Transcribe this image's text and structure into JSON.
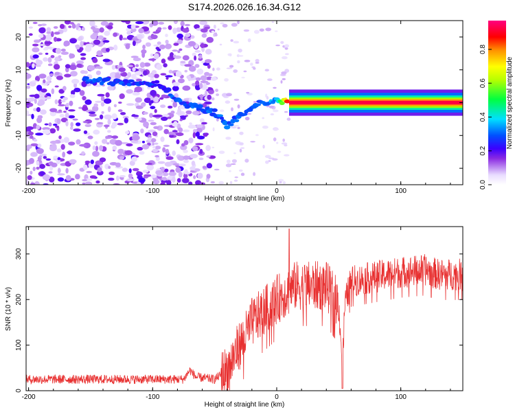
{
  "title": "S174.2026.026.16.34.G12",
  "chart_data": [
    {
      "type": "heatmap",
      "xlabel": "Height of straight line (km)",
      "ylabel": "Frequency (Hz)",
      "xlim": [
        -202,
        150
      ],
      "ylim": [
        -25,
        25
      ],
      "xticks": [
        -200,
        -100,
        0,
        100
      ],
      "yticks": [
        -20,
        -10,
        0,
        10,
        20
      ],
      "description_points": [
        {
          "x": -155,
          "y": 7,
          "amp": 0.25
        },
        {
          "x": -150,
          "y": 6.5,
          "amp": 0.3
        },
        {
          "x": -95,
          "y": 6,
          "amp": 0.25
        },
        {
          "x": -78,
          "y": 0,
          "amp": 0.3
        },
        {
          "x": -50,
          "y": -3,
          "amp": 0.3
        },
        {
          "x": -40,
          "y": -7,
          "amp": 0.3
        },
        {
          "x": -20,
          "y": -1,
          "amp": 0.3
        },
        {
          "x": 0,
          "y": 1,
          "amp": 0.35
        },
        {
          "x": 10,
          "y": 0,
          "amp": 0.95
        },
        {
          "x": 150,
          "y": 0,
          "amp": 0.95
        }
      ],
      "colorbar": {
        "label": "Normalized spectral amplitude",
        "ticks": [
          "0.0",
          "0.2",
          "0.4",
          "0.6",
          "0.8"
        ],
        "tick_values": [
          0,
          0.2,
          0.4,
          0.6,
          0.8
        ],
        "range": [
          0,
          0.97
        ]
      }
    },
    {
      "type": "line",
      "xlabel": "Height of straight line (km)",
      "ylabel": "SNR (10 * v/v)",
      "xlim": [
        -202,
        150
      ],
      "ylim": [
        0,
        360
      ],
      "xticks": [
        -200,
        -100,
        0,
        100
      ],
      "yticks": [
        0,
        100,
        200,
        300
      ],
      "series": [
        {
          "name": "SNR",
          "color": "#e83030",
          "x": [
            -202,
            -150,
            -100,
            -75,
            -70,
            -65,
            -50,
            -40,
            -30,
            -25,
            -20,
            -10,
            0,
            10,
            15,
            30,
            40,
            50,
            53,
            55,
            60,
            80,
            100,
            120,
            130,
            150
          ],
          "y": [
            25,
            25,
            25,
            25,
            45,
            30,
            25,
            45,
            100,
            120,
            150,
            175,
            200,
            220,
            230,
            230,
            230,
            190,
            60,
            190,
            240,
            250,
            260,
            265,
            255,
            255
          ]
        }
      ]
    }
  ],
  "colors": {
    "trace": "#e83030",
    "axis": "#000000"
  }
}
